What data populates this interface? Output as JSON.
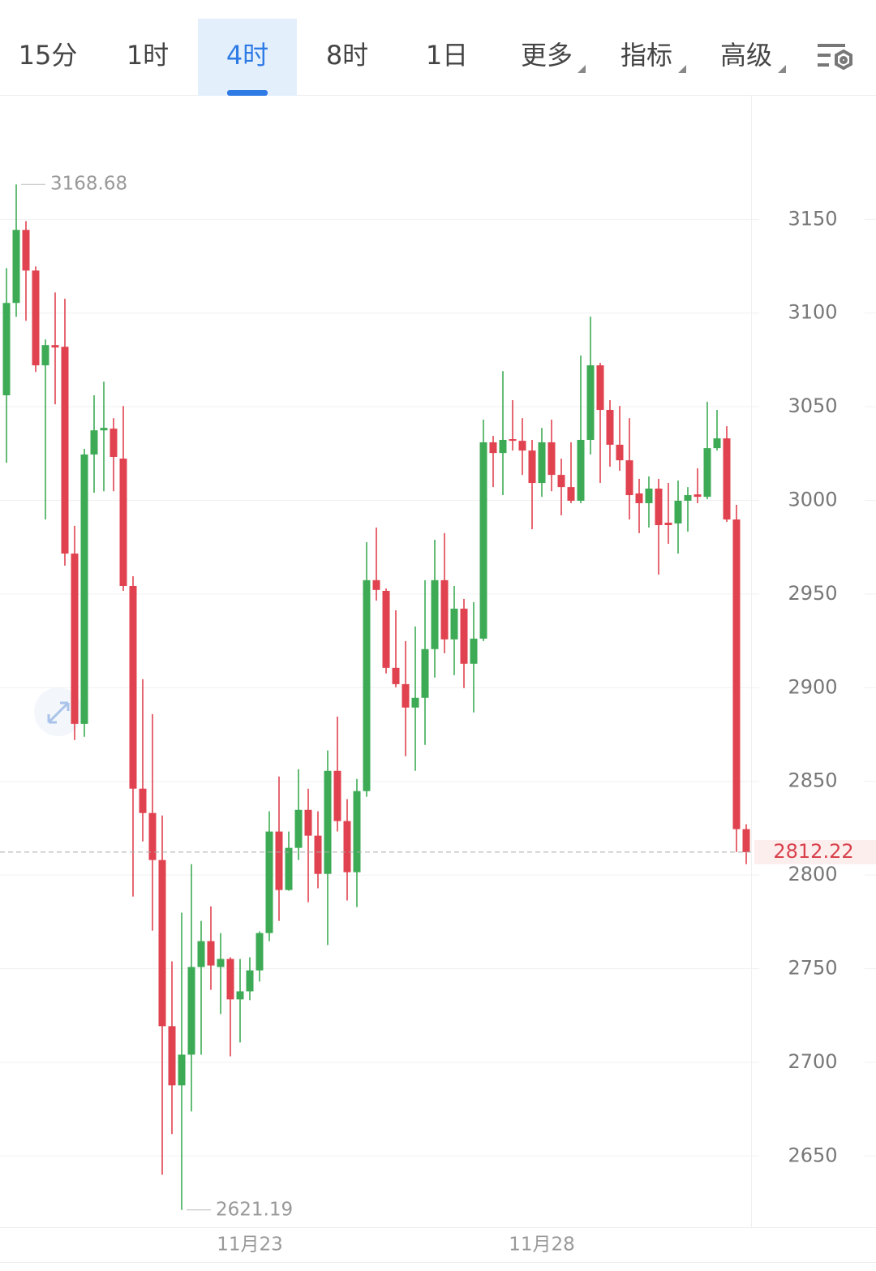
{
  "toolbar": {
    "tabs": [
      "15分",
      "1时",
      "4时",
      "8时",
      "1日",
      "更多",
      "指标",
      "高级"
    ],
    "active": 2
  },
  "chart_data": {
    "type": "candlestick",
    "categories": [
      null,
      null,
      null,
      null,
      null,
      null,
      null,
      null,
      null,
      null,
      null,
      null,
      null,
      null,
      null,
      null,
      null,
      null,
      null,
      null,
      null,
      null,
      null,
      null,
      null,
      "11月23",
      null,
      null,
      null,
      null,
      null,
      null,
      null,
      null,
      null,
      null,
      null,
      null,
      null,
      null,
      null,
      null,
      null,
      null,
      null,
      null,
      null,
      null,
      null,
      null,
      null,
      null,
      null,
      null,
      null,
      "11月28",
      null,
      null,
      null,
      null,
      null,
      null,
      null,
      null,
      null,
      null,
      null,
      null,
      null,
      null,
      null,
      null,
      null,
      null,
      null,
      null,
      null
    ],
    "open": [
      3056.1,
      3105.4,
      3144.4,
      3122.7,
      3072.1,
      3082.9,
      3082.0,
      2971.6,
      2880.7,
      3024.5,
      3037.4,
      3038.3,
      3022.3,
      2954.3,
      2846.1,
      2833.1,
      2808.0,
      2719.3,
      2687.7,
      2704.1,
      2750.9,
      2764.7,
      2750.9,
      2755.2,
      2733.6,
      2737.9,
      2749.1,
      2769.0,
      2823.2,
      2792.0,
      2814.5,
      2834.8,
      2821.0,
      2800.6,
      2855.6,
      2828.8,
      2801.5,
      2844.8,
      2957.4,
      2951.7,
      2910.6,
      2901.9,
      2889.4,
      2894.6,
      2920.6,
      2957.4,
      2925.8,
      2942.2,
      2912.8,
      2926.2,
      3031.0,
      3025.3,
      3032.7,
      3031.8,
      3026.6,
      3009.3,
      3031.0,
      3013.6,
      3007.1,
      2999.8,
      3032.3,
      3072.1,
      3048.3,
      3029.7,
      3021.4,
      3003.7,
      2998.5,
      3006.3,
      2988.1,
      2987.7,
      2999.8,
      3003.2,
      3001.9,
      3027.9,
      3033.1,
      2989.8,
      2824.5
    ],
    "high": [
      3124.0,
      3168.68,
      3149.1,
      3124.9,
      3085.9,
      3111.0,
      3107.6,
      2986.4,
      3027.5,
      3056.1,
      3063.4,
      3043.9,
      3050.4,
      2959.5,
      2904.5,
      2885.9,
      2831.8,
      2753.9,
      2779.9,
      2805.8,
      2775.5,
      2783.3,
      2769.0,
      2756.1,
      2755.2,
      2756.1,
      2769.9,
      2834.0,
      2852.6,
      2823.2,
      2856.5,
      2846.1,
      2834.0,
      2866.5,
      2884.6,
      2840.5,
      2851.3,
      2977.7,
      2985.5,
      2953.0,
      2941.3,
      2924.9,
      2932.7,
      2957.4,
      2979.0,
      2982.5,
      2954.3,
      2947.4,
      2945.7,
      3043.1,
      3034.4,
      3069.0,
      3053.5,
      3043.9,
      3032.3,
      3038.7,
      3043.1,
      3022.3,
      3031.0,
      3077.3,
      3098.1,
      3073.4,
      3053.5,
      3050.4,
      3043.9,
      3011.5,
      3012.8,
      3011.5,
      3009.3,
      3010.6,
      3007.1,
      3017.1,
      3052.6,
      3048.3,
      3039.6,
      2997.6,
      2827.1
    ],
    "low": [
      3020.1,
      3098.0,
      3095.9,
      3068.6,
      2989.8,
      3051.3,
      2965.2,
      2872.1,
      2873.8,
      3004.1,
      3004.9,
      3004.9,
      2951.7,
      2788.5,
      2817.9,
      2770.3,
      2640.0,
      2661.7,
      2621.19,
      2673.8,
      2704.1,
      2738.7,
      2725.8,
      2703.2,
      2710.6,
      2733.2,
      2743.1,
      2764.7,
      2775.5,
      2791.6,
      2808.0,
      2785.5,
      2792.9,
      2762.6,
      2823.2,
      2786.4,
      2782.9,
      2841.8,
      2946.5,
      2907.6,
      2900.2,
      2863.4,
      2855.6,
      2869.5,
      2905.4,
      2918.4,
      2906.7,
      2899.8,
      2886.8,
      2924.9,
      3007.1,
      3002.8,
      3026.6,
      3013.6,
      2984.6,
      3001.9,
      3004.9,
      2992.0,
      2998.5,
      2998.5,
      3024.5,
      3009.3,
      3018.0,
      3015.8,
      2989.8,
      2982.5,
      2985.5,
      2960.4,
      2976.8,
      2971.6,
      2983.3,
      2998.5,
      3000.6,
      3026.6,
      2988.5,
      2812.3,
      2805.8
    ],
    "close": [
      3105.4,
      3144.4,
      3122.7,
      3072.1,
      3082.9,
      3081.6,
      2971.6,
      2880.7,
      3024.5,
      3037.4,
      3038.7,
      3023.2,
      2954.3,
      2846.1,
      2833.1,
      2808.0,
      2719.3,
      2687.7,
      2704.1,
      2750.9,
      2764.7,
      2751.7,
      2755.2,
      2733.6,
      2737.9,
      2749.1,
      2769.0,
      2823.2,
      2792.0,
      2814.5,
      2834.8,
      2821.0,
      2800.6,
      2855.6,
      2828.8,
      2801.5,
      2844.8,
      2957.4,
      2952.2,
      2910.6,
      2901.9,
      2889.4,
      2894.6,
      2920.6,
      2957.4,
      2925.8,
      2942.2,
      2912.8,
      2926.2,
      3031.0,
      3025.3,
      3032.3,
      3031.8,
      3026.6,
      3009.3,
      3031.0,
      3013.6,
      3007.1,
      2999.8,
      3032.3,
      3072.1,
      3048.3,
      3029.7,
      3021.4,
      3002.8,
      2998.5,
      3006.3,
      2986.8,
      2986.8,
      2999.8,
      3002.8,
      3001.9,
      3027.9,
      3033.1,
      2989.8,
      2824.5,
      2812.22
    ],
    "up_color": "#3dab55",
    "down_color": "#e0424f",
    "ylim": [
      2612,
      3216
    ],
    "yticks": [
      2650,
      2700,
      2750,
      2800,
      2850,
      2900,
      2950,
      3000,
      3050,
      3100,
      3150
    ],
    "grid": true
  }
}
